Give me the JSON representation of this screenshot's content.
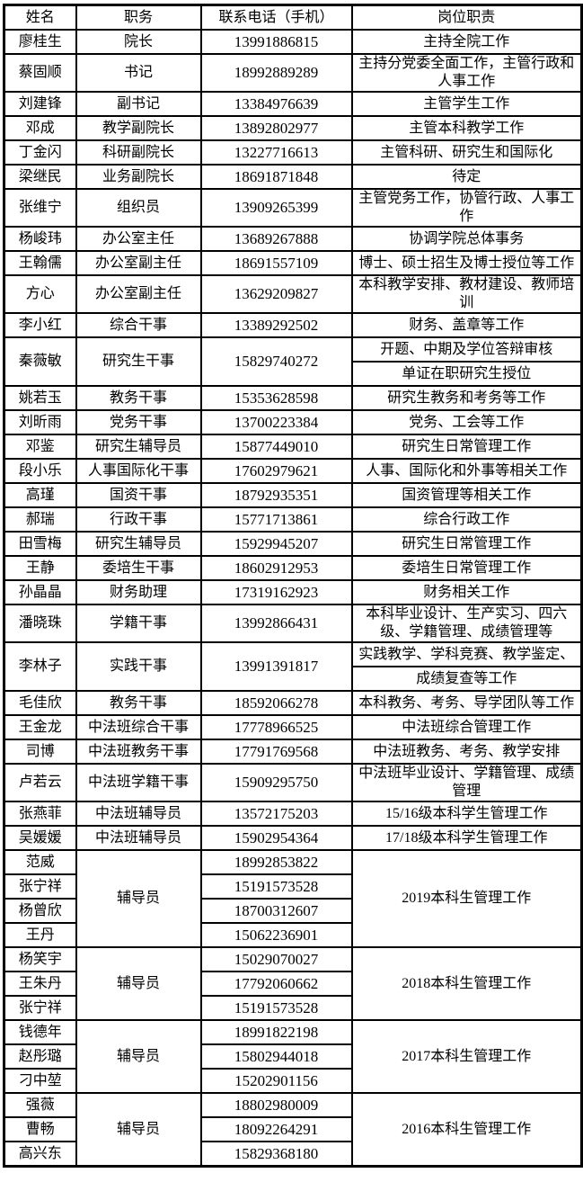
{
  "colors": {
    "border": "#000000",
    "text": "#000000",
    "background": "#ffffff"
  },
  "table": {
    "headers": [
      "姓名",
      "职务",
      "联系电话（手机）",
      "岗位职责"
    ],
    "rows": [
      {
        "cells": [
          {
            "t": "廖桂生"
          },
          {
            "t": "院长"
          },
          {
            "t": "13991886815"
          },
          {
            "t": "主持全院工作"
          }
        ]
      },
      {
        "cells": [
          {
            "t": "蔡固顺"
          },
          {
            "t": "书记"
          },
          {
            "t": "18992889289"
          },
          {
            "t": "主持分党委全面工作，主管行政和人事工作"
          }
        ]
      },
      {
        "cells": [
          {
            "t": "刘建锋"
          },
          {
            "t": "副书记"
          },
          {
            "t": "13384976639"
          },
          {
            "t": "主管学生工作"
          }
        ]
      },
      {
        "cells": [
          {
            "t": "邓成"
          },
          {
            "t": "教学副院长"
          },
          {
            "t": "13892802977"
          },
          {
            "t": "主管本科教学工作"
          }
        ]
      },
      {
        "cells": [
          {
            "t": "丁金闪"
          },
          {
            "t": "科研副院长"
          },
          {
            "t": "13227716613"
          },
          {
            "t": "主管科研、研究生和国际化"
          }
        ]
      },
      {
        "cells": [
          {
            "t": "梁继民"
          },
          {
            "t": "业务副院长"
          },
          {
            "t": "18691871848"
          },
          {
            "t": "待定"
          }
        ]
      },
      {
        "cells": [
          {
            "t": "张维宁"
          },
          {
            "t": "组织员"
          },
          {
            "t": "13909265399"
          },
          {
            "t": "主管党务工作，协管行政、人事工作"
          }
        ]
      },
      {
        "cells": [
          {
            "t": "杨峻玮"
          },
          {
            "t": "办公室主任"
          },
          {
            "t": "13689267888"
          },
          {
            "t": "协调学院总体事务"
          }
        ]
      },
      {
        "cells": [
          {
            "t": "王翰儒"
          },
          {
            "t": "办公室副主任"
          },
          {
            "t": "18691557109"
          },
          {
            "t": "博士、硕士招生及博士授位等工作"
          }
        ]
      },
      {
        "cells": [
          {
            "t": "方心"
          },
          {
            "t": "办公室副主任"
          },
          {
            "t": "13629209827"
          },
          {
            "t": "本科教学安排、教材建设、教师培训"
          }
        ]
      },
      {
        "cells": [
          {
            "t": "李小红"
          },
          {
            "t": "综合干事"
          },
          {
            "t": "13389292502"
          },
          {
            "t": "财务、盖章等工作"
          }
        ]
      },
      {
        "cells": [
          {
            "t": "秦薇敏",
            "rs": 2
          },
          {
            "t": "研究生干事",
            "rs": 2
          },
          {
            "t": "15829740272",
            "rs": 2
          },
          {
            "t": "开题、中期及学位答辩审核"
          }
        ]
      },
      {
        "cells": [
          {
            "t": "单证在职研究生授位"
          }
        ]
      },
      {
        "cells": [
          {
            "t": "姚若玉"
          },
          {
            "t": "教务干事"
          },
          {
            "t": "15353628598"
          },
          {
            "t": "研究生教务和考务等工作"
          }
        ]
      },
      {
        "cells": [
          {
            "t": "刘昕雨"
          },
          {
            "t": "党务干事"
          },
          {
            "t": "13700223384"
          },
          {
            "t": "党务、工会等工作"
          }
        ]
      },
      {
        "cells": [
          {
            "t": "邓鉴"
          },
          {
            "t": "研究生辅导员"
          },
          {
            "t": "15877449010"
          },
          {
            "t": "研究生日常管理工作"
          }
        ]
      },
      {
        "cells": [
          {
            "t": "段小乐"
          },
          {
            "t": "人事国际化干事"
          },
          {
            "t": "17602979621"
          },
          {
            "t": "人事、国际化和外事等相关工作"
          }
        ]
      },
      {
        "cells": [
          {
            "t": "高瑾"
          },
          {
            "t": "国资干事"
          },
          {
            "t": "18792935351"
          },
          {
            "t": "国资管理等相关工作"
          }
        ]
      },
      {
        "cells": [
          {
            "t": "郝瑞"
          },
          {
            "t": "行政干事"
          },
          {
            "t": "15771713861"
          },
          {
            "t": "综合行政工作"
          }
        ]
      },
      {
        "cells": [
          {
            "t": "田雪梅"
          },
          {
            "t": "研究生辅导员"
          },
          {
            "t": "15929945207"
          },
          {
            "t": "研究生日常管理工作"
          }
        ]
      },
      {
        "cells": [
          {
            "t": "王静"
          },
          {
            "t": "委培生干事"
          },
          {
            "t": "18602912953"
          },
          {
            "t": "委培生日常管理工作"
          }
        ]
      },
      {
        "cells": [
          {
            "t": "孙晶晶"
          },
          {
            "t": "财务助理"
          },
          {
            "t": "17319162923"
          },
          {
            "t": "财务相关工作"
          }
        ]
      },
      {
        "cells": [
          {
            "t": "潘晓珠"
          },
          {
            "t": "学籍干事"
          },
          {
            "t": "13992866431"
          },
          {
            "t": "本科毕业设计、生产实习、四六级、学籍管理、成绩管理等"
          }
        ]
      },
      {
        "cells": [
          {
            "t": "李林子",
            "rs": 2
          },
          {
            "t": "实践干事",
            "rs": 2
          },
          {
            "t": "13991391817",
            "rs": 2
          },
          {
            "t": "实践教学、学科竞赛、教学鉴定、"
          }
        ]
      },
      {
        "cells": [
          {
            "t": "成绩复查等工作"
          }
        ]
      },
      {
        "cells": [
          {
            "t": "毛佳欣"
          },
          {
            "t": "教务干事"
          },
          {
            "t": "18592066278"
          },
          {
            "t": "本科教务、考务、导学团队等工作"
          }
        ]
      },
      {
        "cells": [
          {
            "t": "王金龙"
          },
          {
            "t": "中法班综合干事"
          },
          {
            "t": "17778966525"
          },
          {
            "t": "中法班综合管理工作"
          }
        ]
      },
      {
        "cells": [
          {
            "t": "司博"
          },
          {
            "t": "中法班教务干事"
          },
          {
            "t": "17791769568"
          },
          {
            "t": "中法班教务、考务、教学安排"
          }
        ]
      },
      {
        "cells": [
          {
            "t": "卢若云"
          },
          {
            "t": "中法班学籍干事"
          },
          {
            "t": "15909295750"
          },
          {
            "t": "中法班毕业设计、学籍管理、成绩管理"
          }
        ]
      },
      {
        "cells": [
          {
            "t": "张燕菲"
          },
          {
            "t": "中法班辅导员"
          },
          {
            "t": "13572175203"
          },
          {
            "t": "15/16级本科学生管理工作"
          }
        ]
      },
      {
        "cells": [
          {
            "t": "吴媛媛"
          },
          {
            "t": "中法班辅导员"
          },
          {
            "t": "15902954364"
          },
          {
            "t": "17/18级本科学生管理工作"
          }
        ]
      },
      {
        "cells": [
          {
            "t": "范威"
          },
          {
            "t": "辅导员",
            "rs": 4
          },
          {
            "t": "18992853822"
          },
          {
            "t": "2019本科生管理工作",
            "rs": 4
          }
        ]
      },
      {
        "cells": [
          {
            "t": "张宁祥"
          },
          {
            "t": "15191573528"
          }
        ]
      },
      {
        "cells": [
          {
            "t": "杨曾欣"
          },
          {
            "t": "18700312607"
          }
        ]
      },
      {
        "cells": [
          {
            "t": "王丹"
          },
          {
            "t": "15062236901"
          }
        ]
      },
      {
        "cells": [
          {
            "t": "杨笑宇"
          },
          {
            "t": "辅导员",
            "rs": 3
          },
          {
            "t": "15029070027"
          },
          {
            "t": "2018本科生管理工作",
            "rs": 3
          }
        ]
      },
      {
        "cells": [
          {
            "t": "王朱丹"
          },
          {
            "t": "17792060662"
          }
        ]
      },
      {
        "cells": [
          {
            "t": "张宁祥"
          },
          {
            "t": "15191573528"
          }
        ]
      },
      {
        "cells": [
          {
            "t": "钱德年"
          },
          {
            "t": "辅导员",
            "rs": 3
          },
          {
            "t": "18991822198"
          },
          {
            "t": "2017本科生管理工作",
            "rs": 3
          }
        ]
      },
      {
        "cells": [
          {
            "t": "赵彤璐"
          },
          {
            "t": "15802944018"
          }
        ]
      },
      {
        "cells": [
          {
            "t": "刁中堃"
          },
          {
            "t": "15202901156"
          }
        ]
      },
      {
        "cells": [
          {
            "t": "强薇"
          },
          {
            "t": "辅导员",
            "rs": 3
          },
          {
            "t": "18802980009"
          },
          {
            "t": "2016本科生管理工作",
            "rs": 3
          }
        ]
      },
      {
        "cells": [
          {
            "t": "曹畅"
          },
          {
            "t": "18092264291"
          }
        ]
      },
      {
        "cells": [
          {
            "t": "高兴东"
          },
          {
            "t": "15829368180"
          }
        ]
      }
    ]
  }
}
